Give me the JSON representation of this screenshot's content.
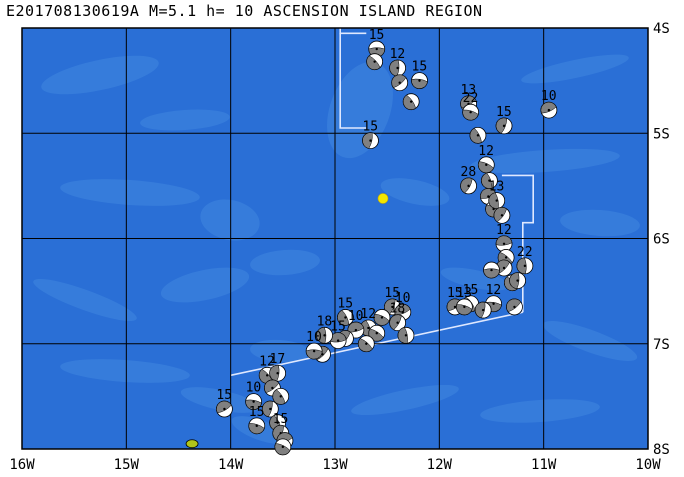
{
  "title": "E201708130619A M=5.1 h= 10 ASCENSION ISLAND REGION",
  "x_ticks": [
    "16W",
    "15W",
    "14W",
    "13W",
    "12W",
    "11W",
    "10W"
  ],
  "y_ticks": [
    "4S",
    "5S",
    "6S",
    "7S",
    "8S"
  ],
  "colors": {
    "ocean": "#2a6fd6",
    "ocean_shallow": "#3f86e0",
    "grid": "#000000",
    "plate_boundary": "#dfe8ff",
    "epicenter": "#f2e600",
    "island": "#b0c41a",
    "beachball_dark": "#808080",
    "beachball_light": "#ffffff"
  },
  "map_extent": {
    "lon_min": -16,
    "lon_max": -10,
    "lat_min": -8,
    "lat_max": -4
  },
  "epicenter": {
    "lon": -12.54,
    "lat": -5.62
  },
  "island": {
    "lon": -14.37,
    "lat": -7.95,
    "name": ""
  },
  "plate_boundary": [
    [
      [
        -12.95,
        -4.0
      ],
      [
        -12.95,
        -4.05
      ],
      [
        -12.7,
        -4.05
      ]
    ],
    [
      [
        -12.95,
        -4.05
      ],
      [
        -12.95,
        -4.95
      ],
      [
        -12.7,
        -4.95
      ]
    ],
    [
      [
        -11.4,
        -5.4
      ],
      [
        -11.1,
        -5.4
      ],
      [
        -11.1,
        -5.85
      ],
      [
        -11.2,
        -5.85
      ],
      [
        -11.2,
        -6.7
      ]
    ],
    [
      [
        -11.2,
        -6.7
      ],
      [
        -14.0,
        -7.3
      ]
    ]
  ],
  "mechanisms": [
    {
      "lon": -12.6,
      "lat": -4.2,
      "depth": "15"
    },
    {
      "lon": -12.62,
      "lat": -4.32,
      "depth": ""
    },
    {
      "lon": -12.4,
      "lat": -4.38,
      "depth": "12"
    },
    {
      "lon": -12.38,
      "lat": -4.52,
      "depth": ""
    },
    {
      "lon": -12.19,
      "lat": -4.5,
      "depth": "15"
    },
    {
      "lon": -12.27,
      "lat": -4.7,
      "depth": ""
    },
    {
      "lon": -12.66,
      "lat": -5.07,
      "depth": "15"
    },
    {
      "lon": -11.72,
      "lat": -4.72,
      "depth": "13"
    },
    {
      "lon": -11.7,
      "lat": -4.8,
      "depth": "22"
    },
    {
      "lon": -11.63,
      "lat": -5.02,
      "depth": ""
    },
    {
      "lon": -11.38,
      "lat": -4.93,
      "depth": "15"
    },
    {
      "lon": -10.95,
      "lat": -4.78,
      "depth": "10"
    },
    {
      "lon": -11.55,
      "lat": -5.3,
      "depth": "12"
    },
    {
      "lon": -11.52,
      "lat": -5.45,
      "depth": ""
    },
    {
      "lon": -11.72,
      "lat": -5.5,
      "depth": "28"
    },
    {
      "lon": -11.53,
      "lat": -5.6,
      "depth": ""
    },
    {
      "lon": -11.48,
      "lat": -5.72,
      "depth": ""
    },
    {
      "lon": -11.45,
      "lat": -5.64,
      "depth": "13"
    },
    {
      "lon": -11.4,
      "lat": -5.78,
      "depth": ""
    },
    {
      "lon": -11.38,
      "lat": -6.05,
      "depth": "12"
    },
    {
      "lon": -11.36,
      "lat": -6.18,
      "depth": ""
    },
    {
      "lon": -11.18,
      "lat": -6.26,
      "depth": "22"
    },
    {
      "lon": -11.38,
      "lat": -6.28,
      "depth": ""
    },
    {
      "lon": -11.5,
      "lat": -6.3,
      "depth": ""
    },
    {
      "lon": -11.3,
      "lat": -6.42,
      "depth": ""
    },
    {
      "lon": -11.25,
      "lat": -6.4,
      "depth": ""
    },
    {
      "lon": -11.28,
      "lat": -6.65,
      "depth": ""
    },
    {
      "lon": -11.48,
      "lat": -6.62,
      "depth": "12"
    },
    {
      "lon": -11.7,
      "lat": -6.62,
      "depth": "15"
    },
    {
      "lon": -11.58,
      "lat": -6.68,
      "depth": ""
    },
    {
      "lon": -11.85,
      "lat": -6.65,
      "depth": "15"
    },
    {
      "lon": -11.76,
      "lat": -6.65,
      "depth": "13"
    },
    {
      "lon": -12.9,
      "lat": -6.75,
      "depth": "15"
    },
    {
      "lon": -12.45,
      "lat": -6.65,
      "depth": "15"
    },
    {
      "lon": -12.35,
      "lat": -6.7,
      "depth": "10"
    },
    {
      "lon": -12.55,
      "lat": -6.75,
      "depth": ""
    },
    {
      "lon": -12.68,
      "lat": -6.85,
      "depth": "12"
    },
    {
      "lon": -12.4,
      "lat": -6.8,
      "depth": "18"
    },
    {
      "lon": -12.8,
      "lat": -6.87,
      "depth": "10"
    },
    {
      "lon": -12.6,
      "lat": -6.9,
      "depth": ""
    },
    {
      "lon": -12.32,
      "lat": -6.92,
      "depth": ""
    },
    {
      "lon": -12.9,
      "lat": -6.95,
      "depth": ""
    },
    {
      "lon": -12.97,
      "lat": -6.97,
      "depth": "15"
    },
    {
      "lon": -12.7,
      "lat": -7.0,
      "depth": ""
    },
    {
      "lon": -13.1,
      "lat": -6.92,
      "depth": "18"
    },
    {
      "lon": -13.12,
      "lat": -7.1,
      "depth": ""
    },
    {
      "lon": -13.2,
      "lat": -7.07,
      "depth": "10"
    },
    {
      "lon": -13.65,
      "lat": -7.3,
      "depth": "12"
    },
    {
      "lon": -13.55,
      "lat": -7.28,
      "depth": "17"
    },
    {
      "lon": -13.6,
      "lat": -7.42,
      "depth": ""
    },
    {
      "lon": -13.78,
      "lat": -7.55,
      "depth": "10"
    },
    {
      "lon": -13.52,
      "lat": -7.5,
      "depth": ""
    },
    {
      "lon": -13.62,
      "lat": -7.62,
      "depth": ""
    },
    {
      "lon": -14.06,
      "lat": -7.62,
      "depth": "15"
    },
    {
      "lon": -13.75,
      "lat": -7.78,
      "depth": "15"
    },
    {
      "lon": -13.55,
      "lat": -7.75,
      "depth": ""
    },
    {
      "lon": -13.52,
      "lat": -7.85,
      "depth": "15"
    },
    {
      "lon": -13.48,
      "lat": -7.92,
      "depth": ""
    },
    {
      "lon": -13.5,
      "lat": -7.98,
      "depth": ""
    }
  ]
}
